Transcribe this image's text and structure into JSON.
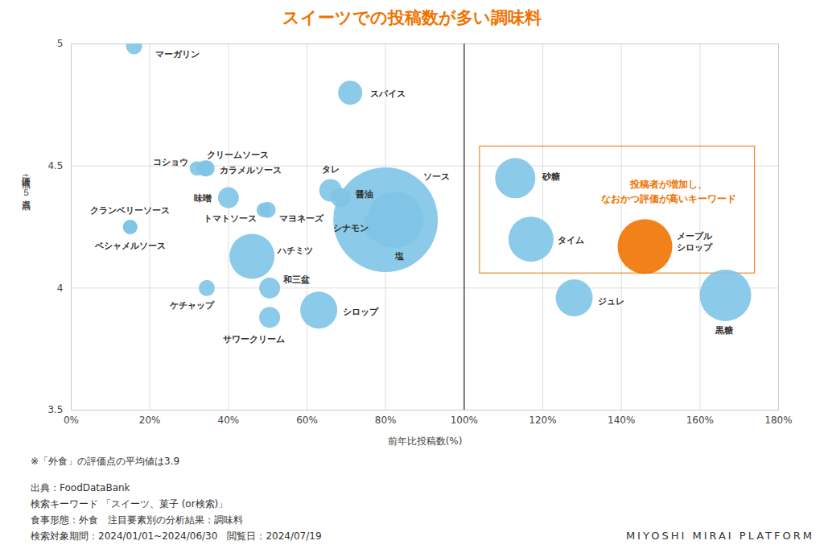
{
  "chart_data": {
    "type": "scatter",
    "title": "スイーツでの投稿数が多い調味料",
    "x_label": "前年比投稿数(%)",
    "y_label": "評価点（点，５点満点）",
    "labels": [
      "マーガリン",
      "スパイス",
      "コショウ",
      "クリームソース",
      "カラメルソース",
      "味噌",
      "クランベリーソース",
      "ベシャメルソース",
      "トマトソース",
      "マヨネーズ",
      "タレ",
      "醤油",
      "ソース",
      "シナモン",
      "塩",
      "ハチミツ",
      "和三盆",
      "ケチャップ",
      "サワークリーム",
      "シロップ",
      "砂糖",
      "タイム",
      "メープル\nシロップ",
      "ジュレ",
      "黒糖"
    ],
    "x": [
      16,
      71,
      32,
      34,
      34.5,
      40,
      15,
      15,
      49,
      50,
      66,
      68.5,
      80,
      79,
      82.5,
      46,
      50.5,
      34.5,
      50.5,
      63,
      113,
      117,
      146,
      128,
      166.5
    ],
    "values": [
      4.99,
      4.8,
      4.49,
      4.49,
      4.49,
      4.37,
      4.25,
      4.25,
      4.32,
      4.32,
      4.4,
      4.37,
      4.28,
      4.26,
      4.28,
      4.13,
      4.0,
      4.0,
      3.88,
      3.91,
      4.45,
      4.2,
      4.17,
      3.96,
      3.97
    ],
    "sizes": [
      100,
      225,
      81,
      100,
      100,
      169,
      81,
      81,
      81,
      100,
      196,
      144,
      4225,
      484,
      1225,
      784,
      169,
      100,
      169,
      529,
      625,
      784,
      1156,
      529,
      1024
    ],
    "colors": [
      "#7ec4e6",
      "#7ec4e6",
      "#7ec4e6",
      "#7ec4e6",
      "#7ec4e6",
      "#7ec4e6",
      "#7ec4e6",
      "#7ec4e6",
      "#7ec4e6",
      "#7ec4e6",
      "#7ec4e6",
      "#7ec4e6",
      "#7ec4e6",
      "#7ec4e6",
      "#7ec4e6",
      "#7ec4e6",
      "#7ec4e6",
      "#7ec4e6",
      "#7ec4e6",
      "#7ec4e6",
      "#7ec4e6",
      "#7ec4e6",
      "#ef7300",
      "#7ec4e6",
      "#7ec4e6"
    ],
    "xlim": [
      0,
      180
    ],
    "xticks": [
      {
        "value": 0,
        "label": "0%"
      },
      {
        "value": 20,
        "label": "20%"
      },
      {
        "value": 40,
        "label": "40%"
      },
      {
        "value": 60,
        "label": "60%"
      },
      {
        "value": 80,
        "label": "80%"
      },
      {
        "value": 100,
        "label": "100%"
      },
      {
        "value": 120,
        "label": "120%"
      },
      {
        "value": 140,
        "label": "140%"
      },
      {
        "value": 160,
        "label": "160%"
      },
      {
        "value": 180,
        "label": "180%"
      }
    ],
    "ylim": [
      3.5,
      5
    ],
    "yticks": [
      3.5,
      4,
      4.5,
      5
    ],
    "grid": true,
    "reference_line": {
      "x": 100
    },
    "highlight_box": {
      "x": [
        104,
        174
      ],
      "y": [
        4.06,
        4.58
      ],
      "color": "#ef7300",
      "label": "投稿者が増加し、\nなおかつ評価が高いキーワード",
      "label_x": 152,
      "label_y": 4.4
    },
    "notes": [
      "※「外食」の評価点の平均値は3.9",
      "出典：FoodDataBank",
      "検索キーワード 「スイーツ、菓子 (or検索)」",
      "食事形態：外食　注目要素別の分析結果：調味料",
      "検索対象期間：2024/01/01~2024/06/30　閲覧日：2024/07/19"
    ],
    "brand": "MIYOSHI MIRAI PLATFORM"
  }
}
